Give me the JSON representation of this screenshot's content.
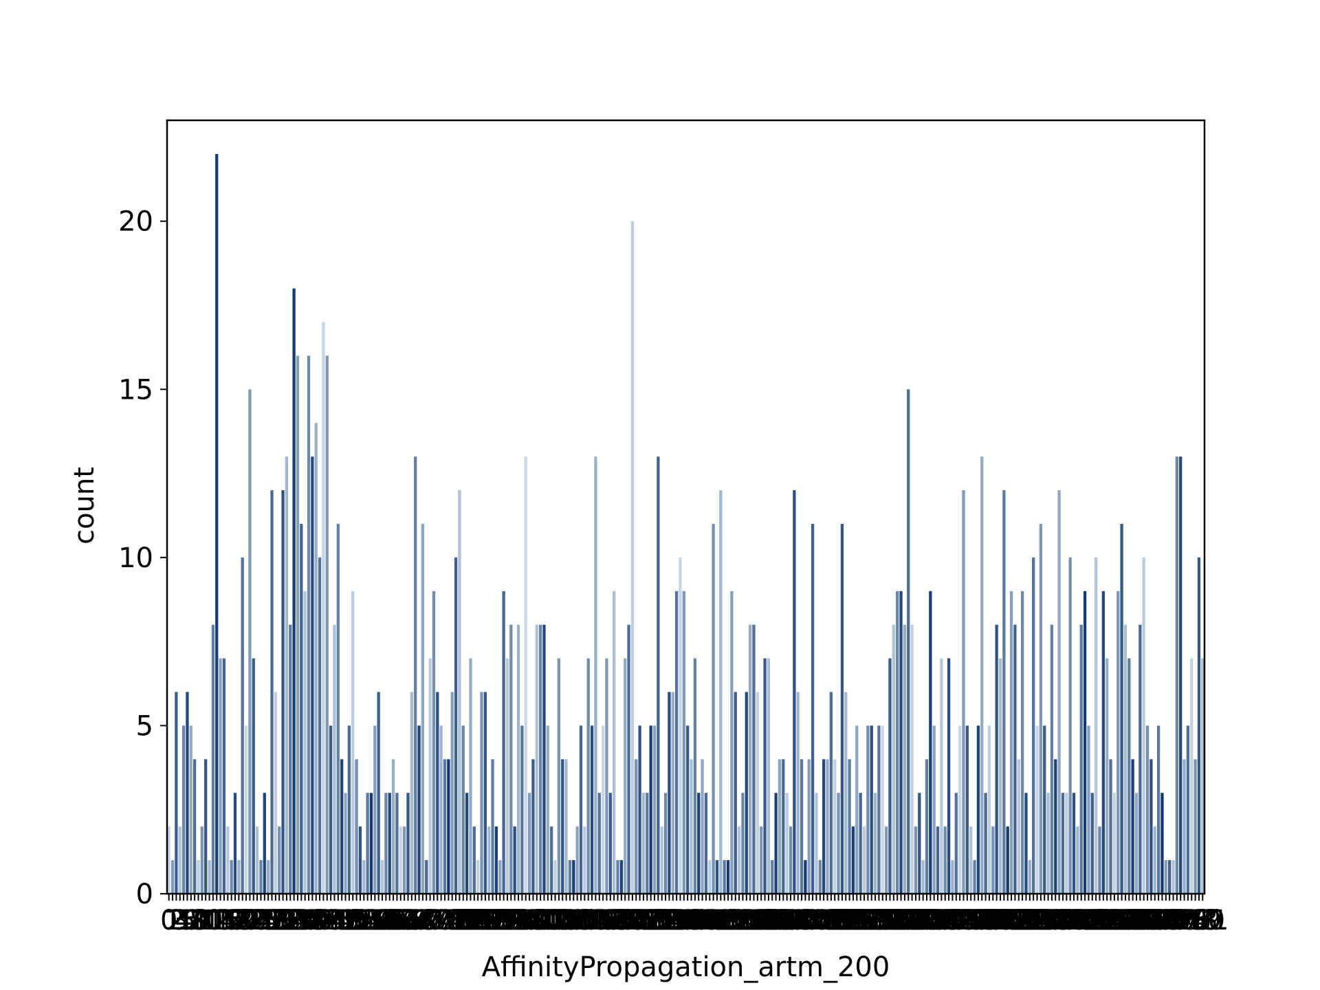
{
  "chart_data": {
    "type": "bar",
    "title": "",
    "xlabel": "AffinityPropagation_artm_200",
    "ylabel": "count",
    "ylim": [
      0,
      23
    ],
    "yticks": [
      0,
      5,
      10,
      15,
      20
    ],
    "grid": false,
    "legend": "none",
    "palette": "Blues",
    "colors": {
      "light": "#deebf7",
      "dark": "#08306b"
    },
    "values": [
      2,
      1,
      6,
      2,
      5,
      6,
      5,
      4,
      1,
      2,
      4,
      1,
      8,
      22,
      7,
      7,
      2,
      1,
      3,
      1,
      10,
      5,
      15,
      7,
      2,
      1,
      3,
      1,
      12,
      6,
      2,
      12,
      13,
      8,
      18,
      16,
      11,
      9,
      16,
      13,
      14,
      10,
      17,
      16,
      5,
      8,
      11,
      4,
      3,
      5,
      9,
      4,
      2,
      1,
      3,
      3,
      5,
      6,
      1,
      3,
      3,
      4,
      3,
      2,
      2,
      3,
      6,
      13,
      5,
      11,
      1,
      7,
      9,
      6,
      5,
      4,
      4,
      6,
      10,
      12,
      5,
      3,
      7,
      2,
      1,
      6,
      6,
      2,
      4,
      2,
      1,
      9,
      7,
      8,
      2,
      8,
      5,
      13,
      3,
      4,
      8,
      8,
      8,
      5,
      2,
      1,
      7,
      4,
      4,
      1,
      1,
      2,
      5,
      2,
      7,
      5,
      13,
      3,
      5,
      7,
      3,
      9,
      1,
      1,
      7,
      8,
      20,
      4,
      5,
      3,
      3,
      5,
      5,
      13,
      2,
      3,
      6,
      6,
      9,
      10,
      9,
      5,
      4,
      7,
      3,
      4,
      3,
      1,
      11,
      1,
      12,
      1,
      1,
      9,
      6,
      2,
      3,
      6,
      8,
      8,
      6,
      2,
      7,
      7,
      1,
      3,
      4,
      4,
      3,
      2,
      12,
      6,
      4,
      1,
      4,
      11,
      3,
      1,
      4,
      4,
      6,
      4,
      3,
      11,
      6,
      4,
      2,
      5,
      3,
      2,
      5,
      5,
      3,
      5,
      5,
      2,
      7,
      8,
      9,
      9,
      8,
      15,
      8,
      2,
      3,
      1,
      4,
      9,
      5,
      2,
      7,
      2,
      7,
      1,
      3,
      5,
      12,
      5,
      2,
      1,
      5,
      13,
      3,
      5,
      2,
      8,
      7,
      12,
      2,
      9,
      8,
      4,
      9,
      3,
      1,
      10,
      5,
      11,
      5,
      3,
      8,
      4,
      12,
      3,
      3,
      10,
      3,
      2,
      8,
      9,
      5,
      3,
      10,
      2,
      9,
      7,
      4,
      3,
      9,
      11,
      8,
      7,
      4,
      3,
      8,
      10,
      5,
      4,
      2,
      5,
      3,
      1,
      1,
      1,
      13,
      13,
      4,
      5,
      7,
      4,
      10,
      7
    ]
  }
}
